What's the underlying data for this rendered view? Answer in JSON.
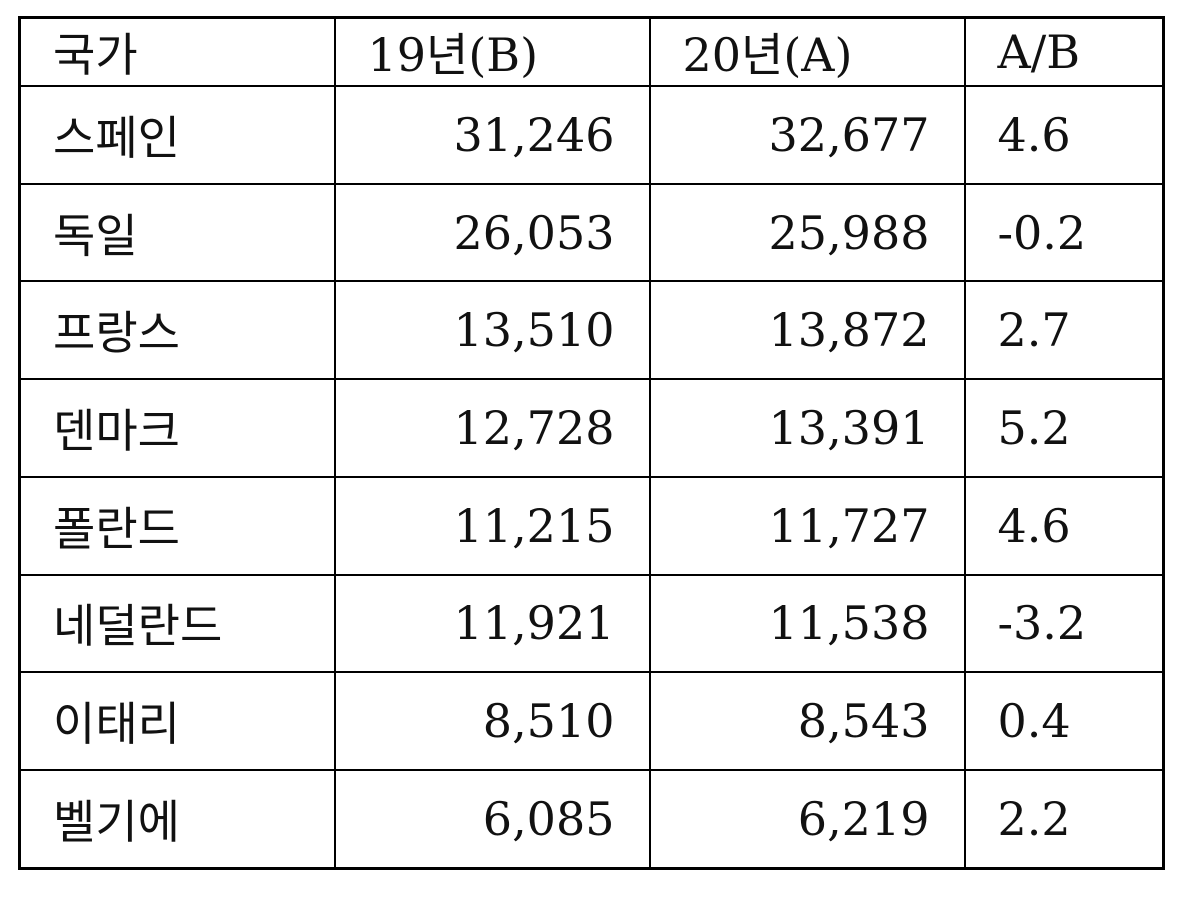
{
  "table": {
    "header": [
      "국가",
      "19년(B)",
      "20년(A)",
      "A/B"
    ],
    "rows": [
      [
        "스페인",
        "31,246",
        "32,677",
        "4.6"
      ],
      [
        "독일",
        "26,053",
        "25,988",
        "-0.2"
      ],
      [
        "프랑스",
        "13,510",
        "13,872",
        "2.7"
      ],
      [
        "덴마크",
        "12,728",
        "13,391",
        "5.2"
      ],
      [
        "폴란드",
        "11,215",
        "11,727",
        "4.6"
      ],
      [
        "네덜란드",
        "11,921",
        "11,538",
        "-3.2"
      ],
      [
        "이태리",
        "8,510",
        "8,543",
        "0.4"
      ],
      [
        "벨기에",
        "6,085",
        "6,219",
        "2.2"
      ]
    ]
  }
}
